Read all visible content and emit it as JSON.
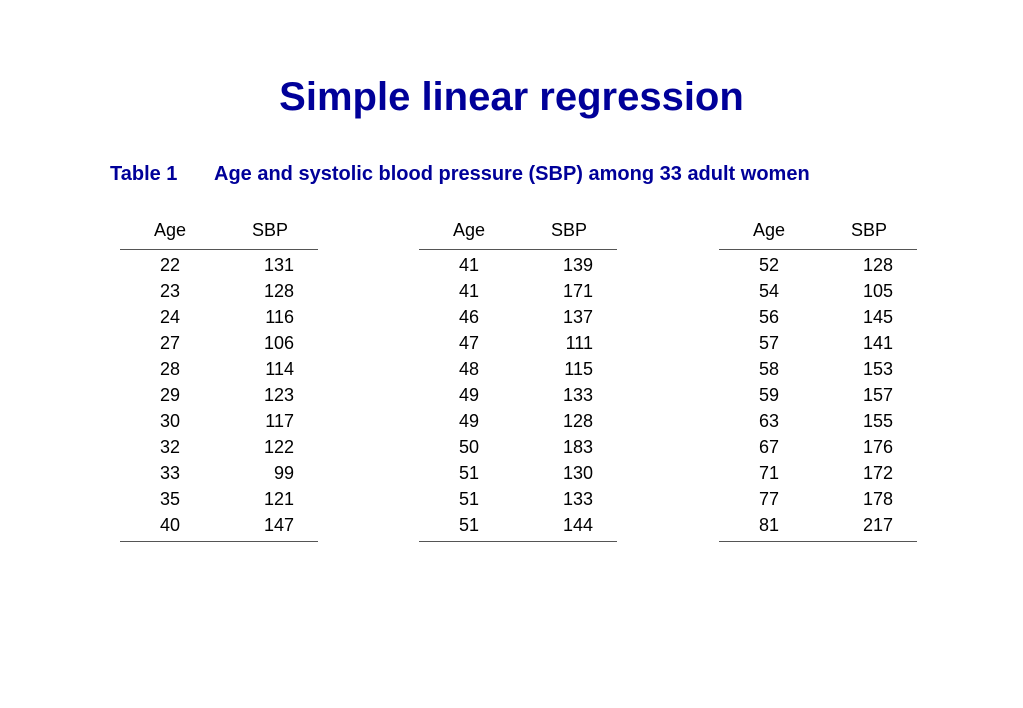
{
  "title": "Simple linear regression",
  "caption": {
    "number": "Table 1",
    "text": "Age and systolic blood pressure (SBP) among 33 adult women"
  },
  "columns": {
    "age": "Age",
    "sbp": "SBP"
  },
  "colors": {
    "title": "#000099",
    "text": "#000000"
  },
  "panels": [
    {
      "rows": [
        {
          "age": "22",
          "sbp": "131"
        },
        {
          "age": "23",
          "sbp": "128"
        },
        {
          "age": "24",
          "sbp": "116"
        },
        {
          "age": "27",
          "sbp": "106"
        },
        {
          "age": "28",
          "sbp": "114"
        },
        {
          "age": "29",
          "sbp": "123"
        },
        {
          "age": "30",
          "sbp": "117"
        },
        {
          "age": "32",
          "sbp": "122"
        },
        {
          "age": "33",
          "sbp": "99"
        },
        {
          "age": "35",
          "sbp": "121"
        },
        {
          "age": "40",
          "sbp": "147"
        }
      ]
    },
    {
      "rows": [
        {
          "age": "41",
          "sbp": "139"
        },
        {
          "age": "41",
          "sbp": "171"
        },
        {
          "age": "46",
          "sbp": "137"
        },
        {
          "age": "47",
          "sbp": "111"
        },
        {
          "age": "48",
          "sbp": "115"
        },
        {
          "age": "49",
          "sbp": "133"
        },
        {
          "age": "49",
          "sbp": "128"
        },
        {
          "age": "50",
          "sbp": "183"
        },
        {
          "age": "51",
          "sbp": "130"
        },
        {
          "age": "51",
          "sbp": "133"
        },
        {
          "age": "51",
          "sbp": "144"
        }
      ]
    },
    {
      "rows": [
        {
          "age": "52",
          "sbp": "128"
        },
        {
          "age": "54",
          "sbp": "105"
        },
        {
          "age": "56",
          "sbp": "145"
        },
        {
          "age": "57",
          "sbp": "141"
        },
        {
          "age": "58",
          "sbp": "153"
        },
        {
          "age": "59",
          "sbp": "157"
        },
        {
          "age": "63",
          "sbp": "155"
        },
        {
          "age": "67",
          "sbp": "176"
        },
        {
          "age": "71",
          "sbp": "172"
        },
        {
          "age": "77",
          "sbp": "178"
        },
        {
          "age": "81",
          "sbp": "217"
        }
      ]
    }
  ]
}
